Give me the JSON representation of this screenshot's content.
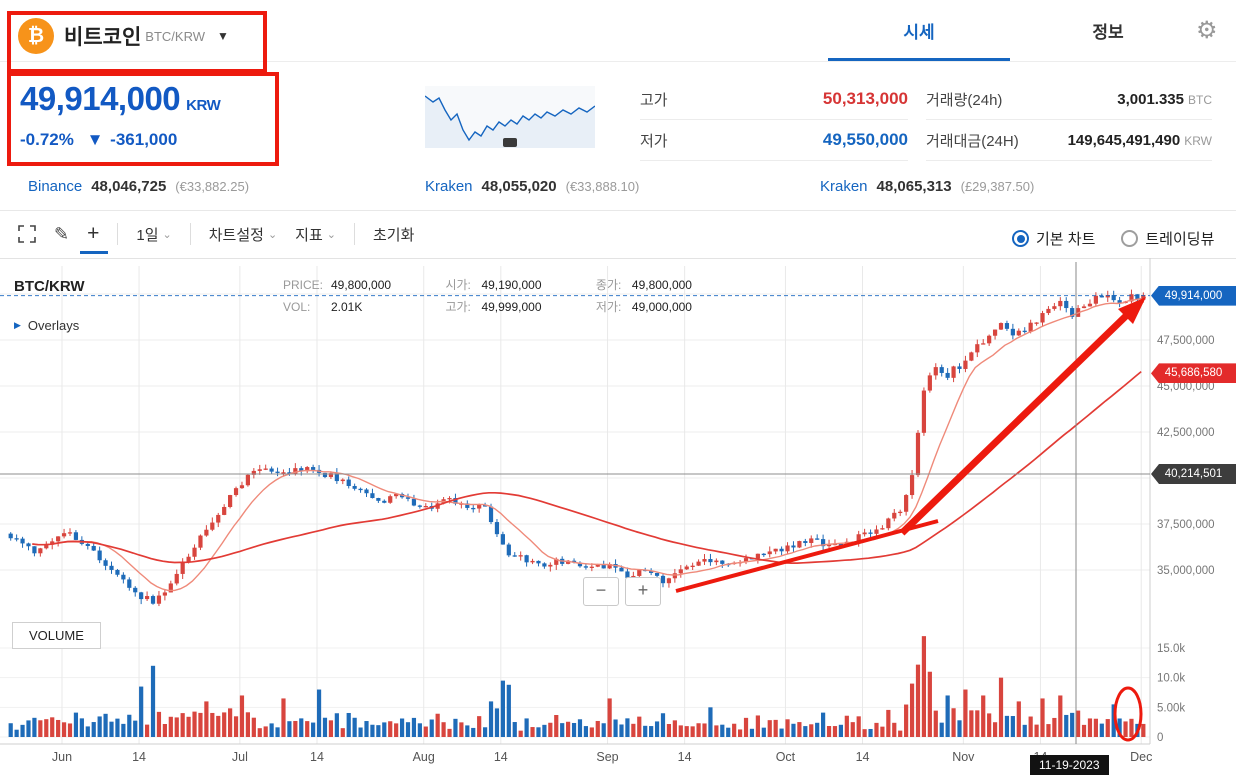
{
  "app": {
    "coin_name": "비트코인",
    "pair": "BTC/KRW",
    "tab_price": "시세",
    "tab_info": "정보"
  },
  "icons": {
    "bitcoin": "₿",
    "dropdown": "▼",
    "gear": "⚙",
    "fullscreen": "⛶",
    "pencil": "✎",
    "plus": "+",
    "caret": "⌄",
    "overlays_arrow": "▶",
    "zoom_out": "−",
    "zoom_in": "+"
  },
  "ticker": {
    "price": "49,914,000",
    "currency": "KRW",
    "change_pct": "-0.72%",
    "change_arrow": "▼",
    "change_amount": "-361,000"
  },
  "stats": {
    "high_label": "고가",
    "high_value": "50,313,000",
    "low_label": "저가",
    "low_value": "49,550,000",
    "volume_label": "거래량(24h)",
    "volume_value": "3,001.335",
    "volume_unit": "BTC",
    "turnover_label": "거래대금(24H)",
    "turnover_value": "149,645,491,490",
    "turnover_unit": "KRW"
  },
  "exchanges": [
    {
      "name": "Binance",
      "price": "48,046,725",
      "converted": "(€33,882.25)"
    },
    {
      "name": "Kraken",
      "price": "48,055,020",
      "converted": "(€33,888.10)"
    },
    {
      "name": "Kraken",
      "price": "48,065,313",
      "converted": "(£29,387.50)"
    }
  ],
  "toolbar": {
    "interval": "1일",
    "chart_settings": "차트설정",
    "indicators": "지표",
    "reset": "초기화",
    "basic_chart": "기본 차트",
    "tradingview": "트레이딩뷰"
  },
  "chart_info": {
    "symbol": "BTC/KRW",
    "overlays": "Overlays",
    "price_label": "PRICE:",
    "price_value": "49,800,000",
    "open_label": "시가:",
    "open_value": "49,190,000",
    "close_label": "종가:",
    "close_value": "49,800,000",
    "vol_label": "VOL:",
    "vol_value": "2.01K",
    "high_label": "고가:",
    "high_value": "49,999,000",
    "low_label": "저가:",
    "low_value": "49,000,000",
    "volume_pane_label": "VOLUME"
  },
  "chart_data": {
    "type": "candlestick",
    "pair": "BTC/KRW",
    "interval": "1일",
    "price_unit": "million KRW",
    "current_price": 49.914,
    "reference_price": 40.2145,
    "ma_slow_end": 45.6866,
    "price_badges": {
      "current": "49,914,000",
      "ma": "45,686,580",
      "reference": "40,214,501"
    },
    "y_axis": [
      {
        "v": 47.5,
        "label": "47,500,000"
      },
      {
        "v": 45.0,
        "label": "45,000,000"
      },
      {
        "v": 42.5,
        "label": "42,500,000"
      },
      {
        "v": 37.5,
        "label": "37,500,000"
      },
      {
        "v": 35.0,
        "label": "35,000,000"
      }
    ],
    "y_gridlines": [
      50,
      47.5,
      45,
      42.5,
      40,
      37.5,
      35
    ],
    "volume_axis": [
      {
        "k": 15,
        "label": "15.0k"
      },
      {
        "k": 10,
        "label": "10.0k"
      },
      {
        "k": 5,
        "label": "5.00k"
      },
      {
        "k": 0,
        "label": "0"
      }
    ],
    "x_ticks": [
      {
        "label": "Jun",
        "i": 9
      },
      {
        "label": "14",
        "i": 22
      },
      {
        "label": "Jul",
        "i": 39
      },
      {
        "label": "14",
        "i": 52
      },
      {
        "label": "Aug",
        "i": 70
      },
      {
        "label": "14",
        "i": 83
      },
      {
        "label": "Sep",
        "i": 101
      },
      {
        "label": "14",
        "i": 114
      },
      {
        "label": "Oct",
        "i": 131
      },
      {
        "label": "14",
        "i": 144
      },
      {
        "label": "Nov",
        "i": 161
      },
      {
        "label": "14",
        "i": 174
      },
      {
        "label": "Dec",
        "i": 191
      }
    ],
    "candle_count": 192,
    "close_anchors": [
      [
        0,
        36.8
      ],
      [
        4,
        35.9
      ],
      [
        9,
        37.2
      ],
      [
        13,
        36.2
      ],
      [
        17,
        34.9
      ],
      [
        22,
        33.6
      ],
      [
        24,
        33.2
      ],
      [
        27,
        34.3
      ],
      [
        31,
        36.3
      ],
      [
        35,
        38.2
      ],
      [
        39,
        39.8
      ],
      [
        42,
        40.5
      ],
      [
        46,
        40.2
      ],
      [
        50,
        40.6
      ],
      [
        54,
        40.1
      ],
      [
        58,
        39.4
      ],
      [
        62,
        38.7
      ],
      [
        66,
        39.0
      ],
      [
        70,
        38.4
      ],
      [
        74,
        38.8
      ],
      [
        78,
        38.2
      ],
      [
        80,
        38.5
      ],
      [
        83,
        36.2
      ],
      [
        86,
        35.6
      ],
      [
        90,
        35.3
      ],
      [
        94,
        35.6
      ],
      [
        98,
        35.1
      ],
      [
        101,
        35.3
      ],
      [
        104,
        34.6
      ],
      [
        107,
        35.0
      ],
      [
        110,
        34.4
      ],
      [
        114,
        35.2
      ],
      [
        118,
        35.6
      ],
      [
        122,
        35.4
      ],
      [
        126,
        35.9
      ],
      [
        131,
        36.2
      ],
      [
        135,
        36.6
      ],
      [
        139,
        36.4
      ],
      [
        144,
        36.9
      ],
      [
        147,
        37.3
      ],
      [
        150,
        38.2
      ],
      [
        152,
        40.3
      ],
      [
        154,
        44.8
      ],
      [
        156,
        46.2
      ],
      [
        158,
        45.6
      ],
      [
        161,
        46.4
      ],
      [
        164,
        47.5
      ],
      [
        167,
        48.3
      ],
      [
        169,
        47.6
      ],
      [
        171,
        48.1
      ],
      [
        174,
        48.9
      ],
      [
        177,
        49.5
      ],
      [
        179,
        48.9
      ],
      [
        182,
        49.6
      ],
      [
        185,
        49.9
      ],
      [
        187,
        49.4
      ],
      [
        189,
        49.8
      ],
      [
        191,
        49.9
      ]
    ],
    "volume_spikes": [
      [
        22,
        8.5
      ],
      [
        24,
        12
      ],
      [
        33,
        6
      ],
      [
        39,
        7
      ],
      [
        46,
        6.5
      ],
      [
        52,
        8
      ],
      [
        83,
        9.5
      ],
      [
        84,
        8.8
      ],
      [
        101,
        6.5
      ],
      [
        118,
        5
      ],
      [
        152,
        9
      ],
      [
        154,
        17
      ],
      [
        155,
        11
      ],
      [
        158,
        7
      ],
      [
        161,
        8
      ],
      [
        164,
        7
      ],
      [
        167,
        10
      ],
      [
        170,
        6
      ],
      [
        174,
        6.5
      ],
      [
        177,
        7
      ],
      [
        186,
        5.5
      ]
    ],
    "ma_fast_period": 10,
    "ma_slow_period": 50,
    "crosshair_date": "11-19-2023",
    "crosshair_index": 180,
    "colors": {
      "up": "#d8453e",
      "down": "#1e6bb8",
      "ma_fast": "#ef8a7a",
      "ma_slow": "#e23b35",
      "accent": "#1565c0",
      "annotation": "#ed1a0e"
    }
  }
}
